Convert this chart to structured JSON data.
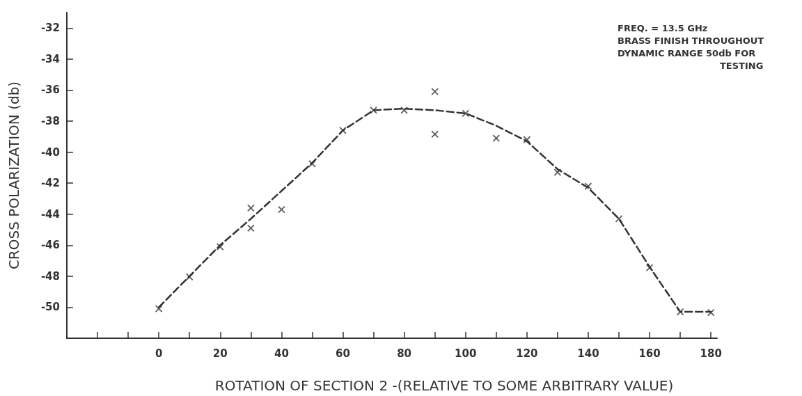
{
  "chart_data": {
    "type": "scatter",
    "xlabel": "ROTATION OF SECTION 2 -(RELATIVE TO SOME ARBITRARY VALUE)",
    "ylabel": "CROSS POLARIZATION (db)",
    "annotations": [
      "FREQ. = 13.5 GHz",
      "BRASS FINISH THROUGHOUT",
      "DYNAMIC RANGE 50db FOR",
      "TESTING"
    ],
    "xlim": [
      -30,
      182
    ],
    "ylim": [
      -52,
      -31
    ],
    "xticks": [
      {
        "value": -20,
        "label": null
      },
      {
        "value": -10,
        "label": null
      },
      0,
      {
        "value": 10,
        "label": null
      },
      20,
      {
        "value": 30,
        "label": null
      },
      40,
      {
        "value": 50,
        "label": null
      },
      60,
      {
        "value": 70,
        "label": null
      },
      80,
      {
        "value": 90,
        "label": null
      },
      100,
      {
        "value": 110,
        "label": null
      },
      120,
      {
        "value": 130,
        "label": null
      },
      140,
      {
        "value": 150,
        "label": null
      },
      160,
      {
        "value": 170,
        "label": null
      },
      180
    ],
    "yticks": [
      -32,
      -34,
      -36,
      -38,
      -40,
      -42,
      -44,
      -46,
      -48,
      -50
    ],
    "series": [
      {
        "color": "#333333",
        "marker": "cross",
        "x": [
          0,
          10,
          20,
          30,
          30,
          40,
          50,
          60,
          70,
          80,
          90,
          90,
          100,
          110,
          120,
          130,
          140,
          150,
          160,
          170,
          180
        ],
        "values": [
          -50.1,
          -48.05,
          -46.1,
          -43.6,
          -44.9,
          -43.7,
          -40.75,
          -38.6,
          -37.3,
          -37.3,
          -36.1,
          -38.85,
          -37.5,
          -39.1,
          -39.2,
          -41.3,
          -42.2,
          -44.3,
          -47.45,
          -50.3,
          -50.35
        ]
      },
      {
        "type": "line",
        "color": "#333333",
        "marker": "none",
        "line_style": "dashed",
        "x": [
          0,
          10,
          20,
          30,
          40,
          50,
          60,
          70,
          80,
          90,
          100,
          110,
          120,
          130,
          140,
          150,
          160,
          170,
          180
        ],
        "values": [
          -50,
          -48,
          -46,
          -44.3,
          -42.5,
          -40.7,
          -38.6,
          -37.3,
          -37.2,
          -37.3,
          -37.5,
          -38.3,
          -39.3,
          -41.1,
          -42.3,
          -44.3,
          -47.4,
          -50.3,
          -50.3
        ]
      }
    ]
  }
}
